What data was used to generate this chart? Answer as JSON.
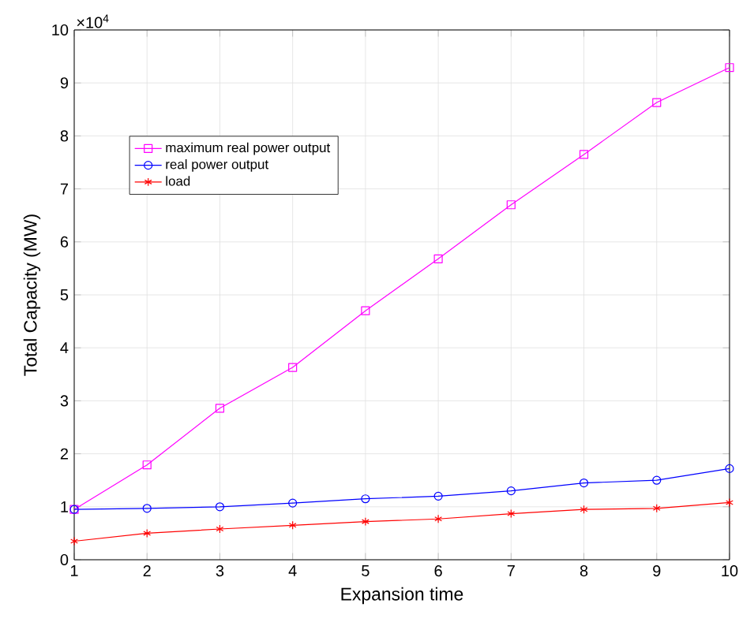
{
  "chart_data": {
    "type": "line",
    "xlabel": "Expansion time",
    "ylabel": "Total Capacity (MW)",
    "annotations": [
      "×10$^{4}$"
    ],
    "x": [
      1,
      2,
      3,
      4,
      5,
      6,
      7,
      8,
      9,
      10
    ],
    "series": [
      {
        "name": "maximum real power output",
        "color": "#ff00ff",
        "marker": "square",
        "values": [
          0.95,
          1.79,
          2.86,
          3.63,
          4.7,
          5.68,
          6.7,
          7.65,
          8.63,
          9.29
        ]
      },
      {
        "name": "real power output",
        "color": "#0000ff",
        "marker": "circle",
        "values": [
          0.95,
          0.97,
          1.0,
          1.07,
          1.15,
          1.2,
          1.3,
          1.45,
          1.5,
          1.72
        ]
      },
      {
        "name": "load",
        "color": "#ff0000",
        "marker": "cross",
        "values": [
          0.35,
          0.5,
          0.58,
          0.65,
          0.72,
          0.77,
          0.87,
          0.95,
          0.97,
          1.08
        ]
      }
    ],
    "xlim": [
      1,
      10
    ],
    "xticks": [
      1,
      2,
      3,
      4,
      5,
      6,
      7,
      8,
      9,
      10
    ],
    "ylim": [
      0,
      10
    ],
    "yticks": [
      0,
      1,
      2,
      3,
      4,
      5,
      6,
      7,
      8,
      9,
      10
    ],
    "grid": true,
    "legend": "top left",
    "line_style": "solid"
  }
}
